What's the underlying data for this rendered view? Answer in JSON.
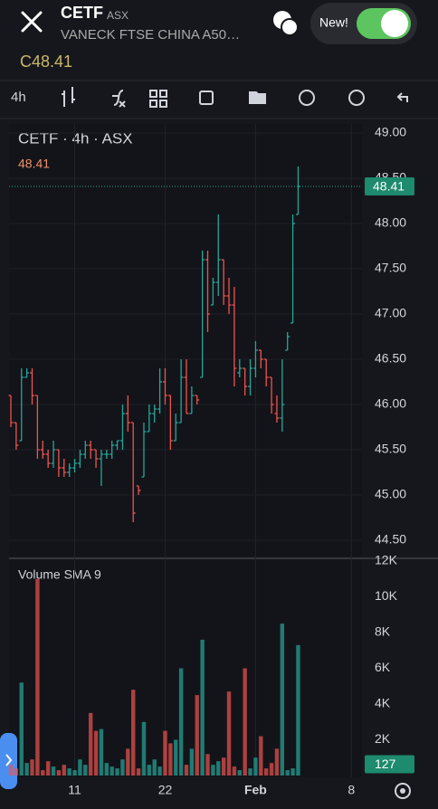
{
  "header": {
    "symbol": "CETF",
    "exchange": "ASX",
    "name": "VANECK FTSE CHINA A50…",
    "toggle_label": "New!",
    "price": "C48.41"
  },
  "toolbar": {
    "interval": "4h"
  },
  "chart_data": {
    "type": "ohlc",
    "legend_title": "CETF · 4h · ASX",
    "legend_value": "48.41",
    "up_color": "#26a69a",
    "down_color": "#ef5350",
    "xlim": [
      0,
      66
    ],
    "xticks": [
      {
        "value": 12,
        "label": "11"
      },
      {
        "value": 29,
        "label": "22"
      },
      {
        "value": 46,
        "label": "Feb"
      },
      {
        "value": 64,
        "label": "8"
      }
    ],
    "ylim": [
      44.5,
      49
    ],
    "yticks": [
      {
        "value": 44.5,
        "label": "44.50"
      },
      {
        "value": 45,
        "label": "45.00"
      },
      {
        "value": 45.5,
        "label": "45.50"
      },
      {
        "value": 46,
        "label": "46.00"
      },
      {
        "value": 46.5,
        "label": "46.50"
      },
      {
        "value": 47,
        "label": "47.00"
      },
      {
        "value": 47.5,
        "label": "47.50"
      },
      {
        "value": 48,
        "label": "48.00"
      },
      {
        "value": 48.5,
        "label": "48.50"
      },
      {
        "value": 49,
        "label": "49.00"
      }
    ],
    "last_price": 48.41,
    "last_price_label": "48.41",
    "open": [
      46.1,
      45.8,
      45.6,
      46.3,
      46.35,
      46.1,
      45.5,
      45.45,
      45.35,
      45.5,
      45.3,
      45.25,
      45.3,
      45.35,
      45.45,
      45.55,
      45.5,
      45.4,
      45.45,
      45.45,
      45.55,
      45.6,
      45.9,
      45.8,
      45.1,
      45.2,
      45.7,
      45.9,
      45.95,
      46.25,
      46.1,
      45.6,
      45.8,
      46.3,
      45.9,
      46.1,
      46.3,
      47.6,
      47.1,
      47.35,
      47.6,
      47.2,
      47.1,
      46.35,
      46.4,
      46.2,
      46.4,
      46.6,
      46.5,
      46.3,
      45.9,
      45.85,
      46.6,
      46.9,
      48.1
    ],
    "high": [
      46.1,
      45.8,
      46.4,
      46.4,
      46.4,
      46.1,
      45.6,
      45.5,
      45.6,
      45.5,
      45.4,
      45.35,
      45.4,
      45.5,
      45.6,
      45.6,
      45.5,
      45.5,
      45.5,
      45.6,
      45.6,
      46.0,
      46.1,
      45.8,
      45.1,
      45.8,
      46.0,
      46.0,
      46.4,
      46.4,
      46.1,
      45.9,
      46.5,
      46.5,
      46.2,
      46.1,
      47.7,
      47.7,
      47.4,
      48.1,
      47.6,
      47.4,
      47.3,
      46.5,
      46.4,
      46.5,
      46.7,
      46.6,
      46.5,
      46.3,
      46.1,
      46.5,
      46.8,
      48.1,
      48.63
    ],
    "low": [
      45.75,
      45.5,
      45.6,
      46.3,
      46.0,
      45.4,
      45.4,
      45.3,
      45.3,
      45.2,
      45.2,
      45.2,
      45.25,
      45.3,
      45.4,
      45.4,
      45.3,
      45.1,
      45.4,
      45.4,
      45.5,
      45.5,
      45.7,
      44.7,
      45.0,
      45.2,
      45.7,
      45.8,
      45.9,
      46.0,
      45.5,
      45.6,
      45.8,
      45.9,
      45.9,
      46.0,
      46.3,
      46.8,
      47.1,
      47.2,
      47.1,
      47.0,
      46.2,
      46.3,
      46.1,
      46.1,
      46.3,
      46.4,
      46.2,
      45.9,
      45.8,
      45.7,
      46.6,
      46.9,
      48.1
    ],
    "close": [
      45.8,
      45.55,
      46.3,
      46.35,
      46.1,
      45.5,
      45.45,
      45.35,
      45.5,
      45.3,
      45.25,
      45.3,
      45.35,
      45.45,
      45.55,
      45.5,
      45.4,
      45.45,
      45.45,
      45.55,
      45.6,
      45.9,
      45.8,
      44.8,
      45.05,
      45.7,
      45.9,
      45.95,
      46.25,
      46.1,
      45.6,
      45.8,
      46.3,
      45.9,
      46.1,
      46.05,
      47.6,
      47.0,
      47.35,
      47.6,
      47.2,
      47.1,
      46.4,
      46.4,
      46.2,
      46.4,
      46.6,
      46.5,
      46.3,
      46.0,
      45.85,
      46.0,
      46.75,
      48.0,
      48.41
    ],
    "volume": {
      "title": "Volume SMA 9",
      "ylim": [
        0,
        12000
      ],
      "yticks": [
        {
          "value": 2000,
          "label": "2K"
        },
        {
          "value": 4000,
          "label": "4K"
        },
        {
          "value": 6000,
          "label": "6K"
        },
        {
          "value": 8000,
          "label": "8K"
        },
        {
          "value": 10000,
          "label": "10K"
        },
        {
          "value": 12000,
          "label": "12K"
        }
      ],
      "values": [
        600,
        400,
        5200,
        700,
        900,
        11000,
        300,
        800,
        500,
        300,
        600,
        400,
        300,
        900,
        600,
        3500,
        2500,
        2600,
        700,
        500,
        400,
        900,
        1500,
        4800,
        400,
        3000,
        600,
        900,
        500,
        2500,
        1800,
        2000,
        6000,
        600,
        1500,
        4500,
        7600,
        1200,
        600,
        800,
        1000,
        4700,
        500,
        300,
        6000,
        400,
        1000,
        2200,
        400,
        700,
        1500,
        8500,
        300,
        400,
        7300
      ],
      "current": 127
    }
  }
}
